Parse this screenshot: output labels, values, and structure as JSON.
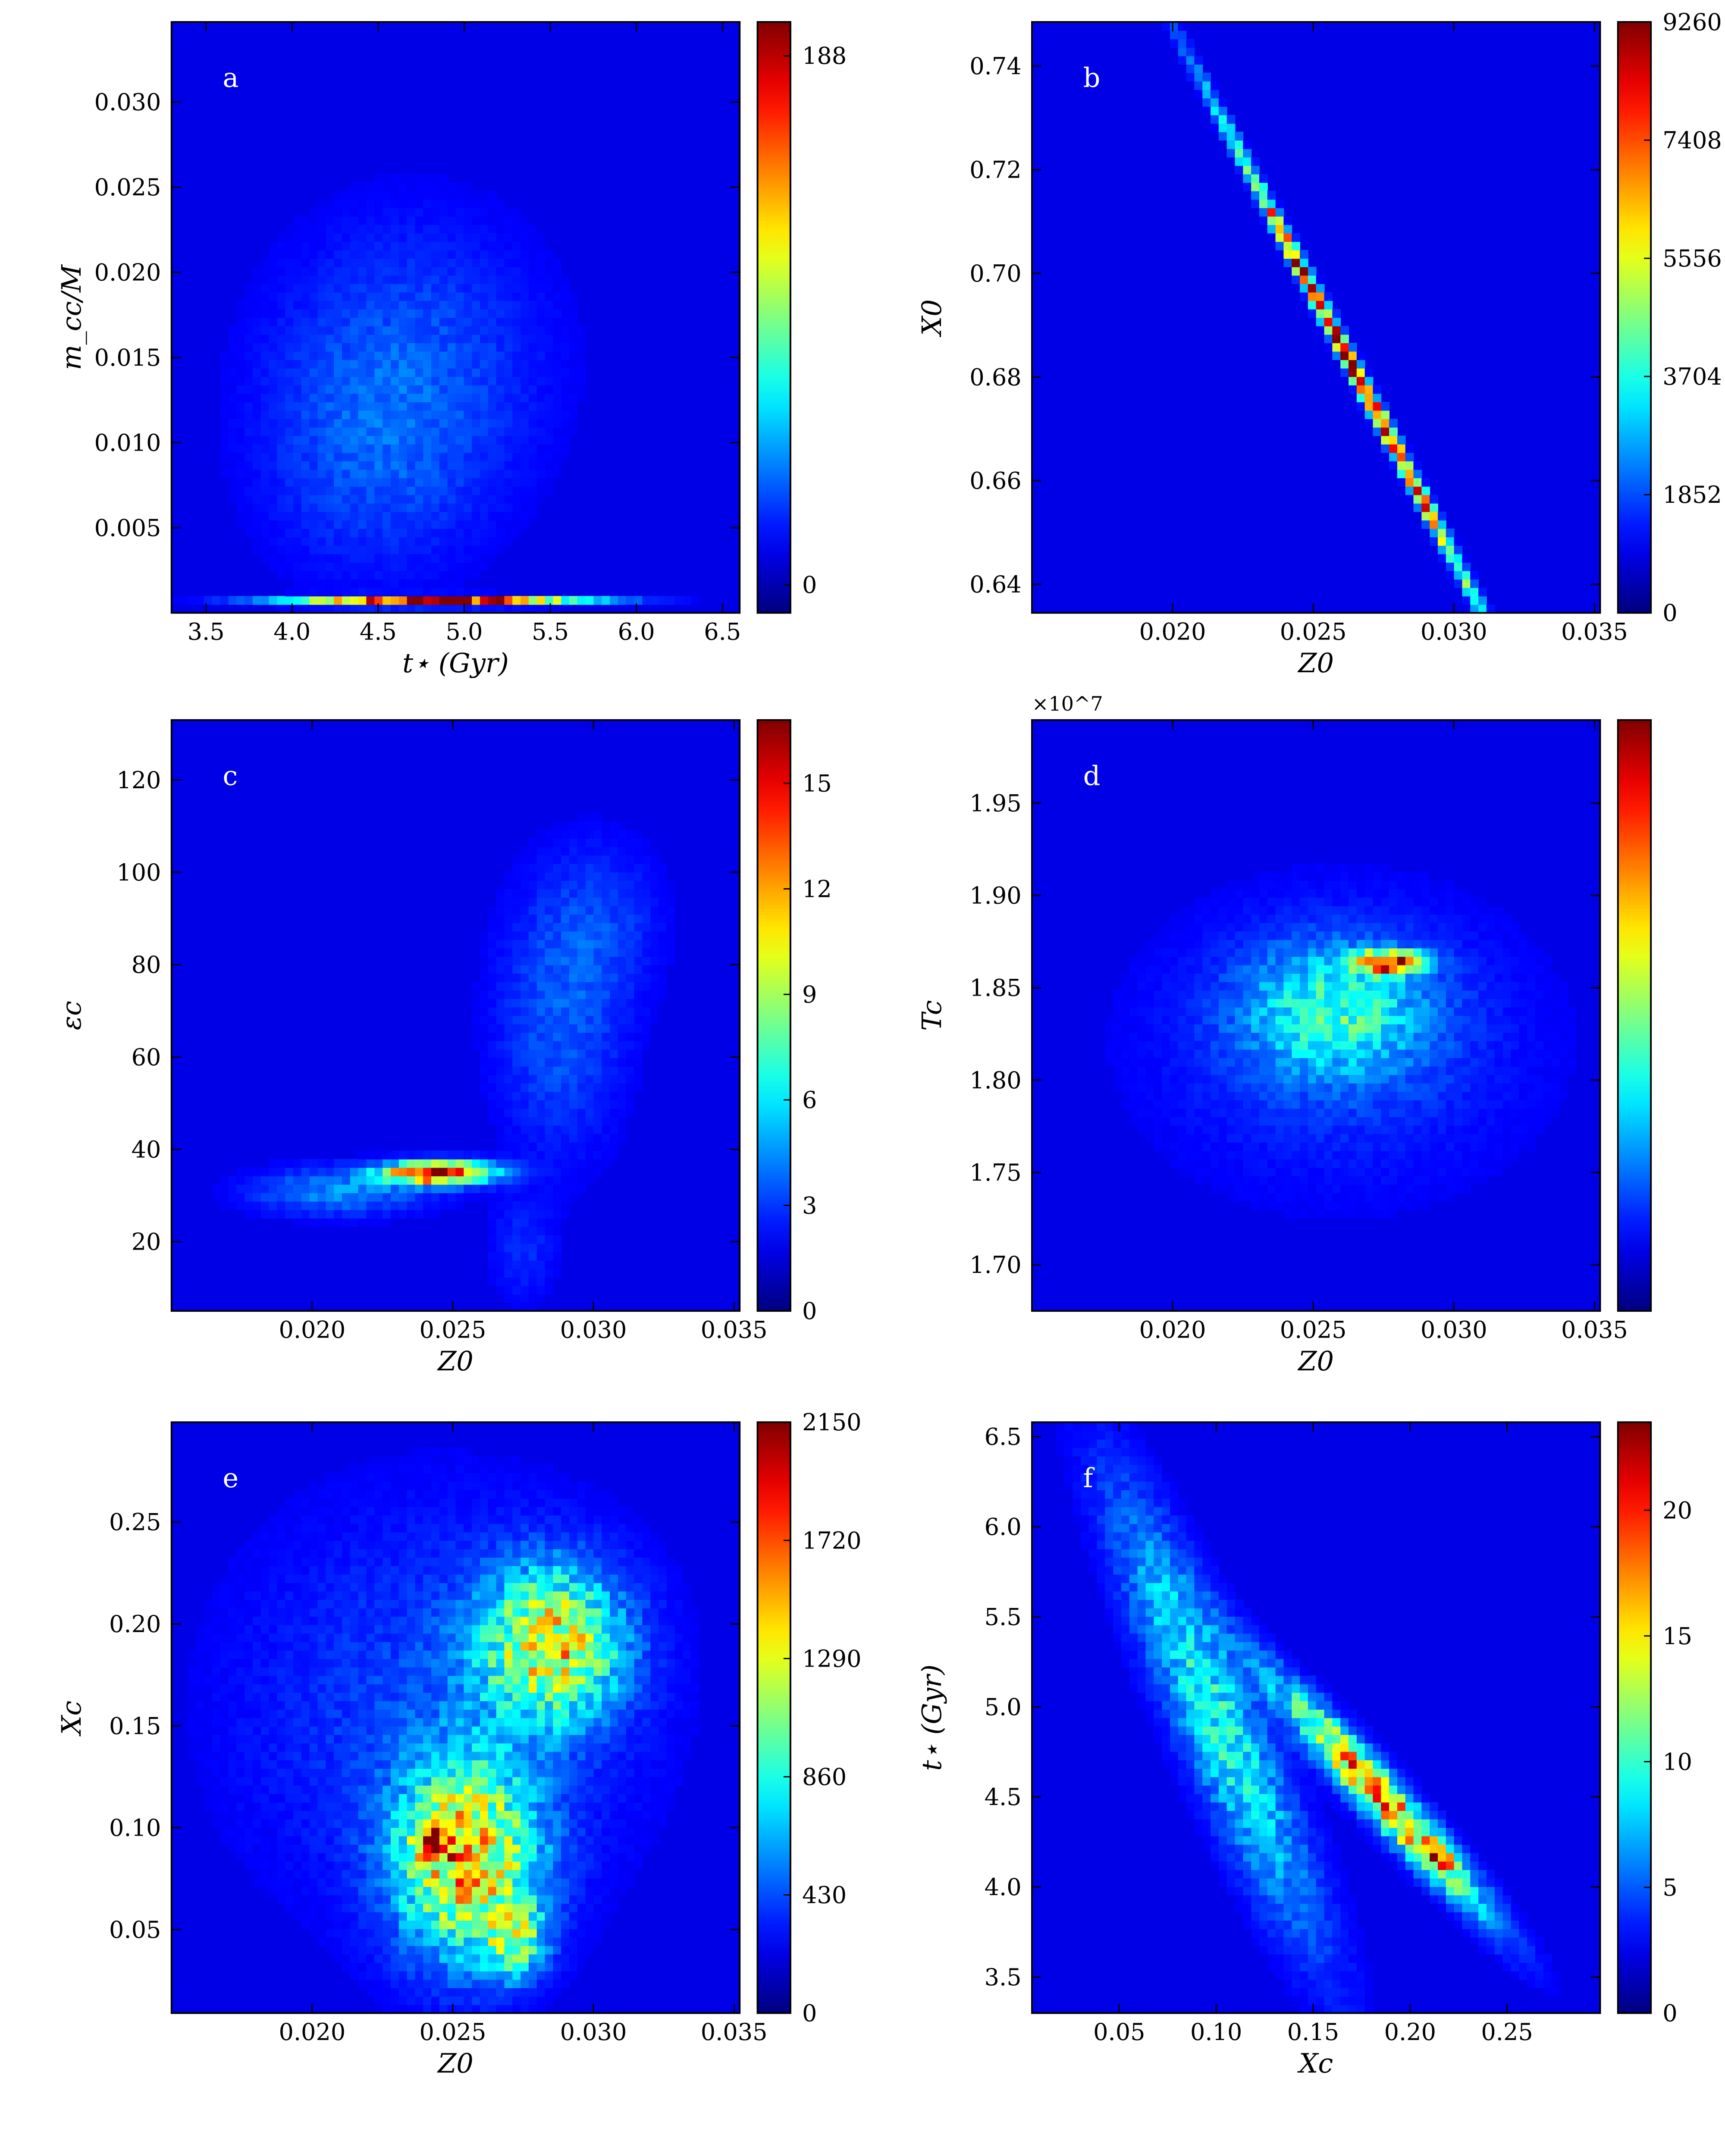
{
  "chart_data": [
    {
      "panel_label": "a",
      "type": "heatmap",
      "xlabel": "t⋆ (Gyr)",
      "ylabel": "m_cc/M",
      "xlim": [
        3.3,
        6.6
      ],
      "ylim": [
        0.0,
        0.0347
      ],
      "x_ticks": [
        3.5,
        4.0,
        4.5,
        5.0,
        5.5,
        6.0,
        6.5
      ],
      "x_tick_labels": [
        "3.5",
        "4.0",
        "4.5",
        "5.0",
        "5.5",
        "6.0",
        "6.5"
      ],
      "y_ticks": [
        0.005,
        0.01,
        0.015,
        0.02,
        0.025,
        0.03
      ],
      "y_tick_labels": [
        "0.005",
        "0.010",
        "0.015",
        "0.020",
        "0.025",
        "0.030"
      ],
      "colorbar": {
        "min": -10,
        "max": 200,
        "ticks": [
          0,
          188
        ],
        "tick_labels": [
          "0",
          "188"
        ]
      },
      "density": {
        "seed": 11,
        "noise": 0.28,
        "floor": 0.02,
        "base": 0.0,
        "blobs": [
          {
            "x": 4.85,
            "y": 0.0007,
            "sx": 0.55,
            "sy": 0.00018,
            "a": 1.0
          },
          {
            "x": 4.7,
            "y": 0.015,
            "sx": 0.55,
            "sy": 0.006,
            "a": 0.1
          },
          {
            "x": 4.45,
            "y": 0.009,
            "sx": 0.45,
            "sy": 0.005,
            "a": 0.08
          }
        ]
      },
      "colormap": "jet"
    },
    {
      "panel_label": "b",
      "type": "heatmap",
      "xlabel": "Z0",
      "ylabel": "X0",
      "xlim": [
        0.015,
        0.0352
      ],
      "ylim": [
        0.6345,
        0.7485
      ],
      "x_ticks": [
        0.02,
        0.025,
        0.03,
        0.035
      ],
      "x_tick_labels": [
        "0.020",
        "0.025",
        "0.030",
        "0.035"
      ],
      "y_ticks": [
        0.64,
        0.66,
        0.68,
        0.7,
        0.72,
        0.74
      ],
      "y_tick_labels": [
        "0.64",
        "0.66",
        "0.68",
        "0.70",
        "0.72",
        "0.74"
      ],
      "colorbar": {
        "min": 0,
        "max": 9260,
        "ticks": [
          0,
          1852,
          3704,
          5556,
          7408,
          9260
        ],
        "tick_labels": [
          "0",
          "1852",
          "3704",
          "5556",
          "7408",
          "9260"
        ]
      },
      "density": {
        "seed": 23,
        "noise": 0.35,
        "floor": 0.02,
        "base": 0.0,
        "rot_blobs": [
          {
            "x": 0.0265,
            "y": 0.681,
            "su": 0.0065,
            "sv": 0.0009,
            "a": 1.0,
            "slope": -3.1
          }
        ]
      },
      "colormap": "jet"
    },
    {
      "panel_label": "c",
      "type": "heatmap",
      "xlabel": "Z0",
      "ylabel": "εc",
      "xlim": [
        0.015,
        0.0352
      ],
      "ylim": [
        5,
        133
      ],
      "x_ticks": [
        0.02,
        0.025,
        0.03,
        0.035
      ],
      "x_tick_labels": [
        "0.020",
        "0.025",
        "0.030",
        "0.035"
      ],
      "y_ticks": [
        20,
        40,
        60,
        80,
        100,
        120
      ],
      "y_tick_labels": [
        "20",
        "40",
        "60",
        "80",
        "100",
        "120"
      ],
      "colorbar": {
        "min": 0,
        "max": 16.8,
        "ticks": [
          0,
          3,
          6,
          9,
          12,
          15
        ],
        "tick_labels": [
          "0",
          "3",
          "6",
          "9",
          "12",
          "15"
        ]
      },
      "density": {
        "seed": 37,
        "noise": 0.3,
        "floor": 0.02,
        "base": 0.0,
        "blobs": [
          {
            "x": 0.0245,
            "y": 35,
            "sx": 0.0013,
            "sy": 1.6,
            "a": 1.0
          },
          {
            "x": 0.021,
            "y": 31,
            "sx": 0.0022,
            "sy": 3.5,
            "a": 0.18
          },
          {
            "x": 0.0288,
            "y": 68,
            "sx": 0.0016,
            "sy": 20,
            "a": 0.12
          },
          {
            "x": 0.0305,
            "y": 90,
            "sx": 0.0015,
            "sy": 12,
            "a": 0.07
          },
          {
            "x": 0.0275,
            "y": 18,
            "sx": 0.0008,
            "sy": 8,
            "a": 0.07
          }
        ]
      },
      "colormap": "jet"
    },
    {
      "panel_label": "d",
      "type": "heatmap",
      "xlabel": "Z0",
      "ylabel": "Tc",
      "axis_multiplier": "×10^7",
      "xlim": [
        0.015,
        0.0352
      ],
      "ylim": [
        1.675,
        1.995
      ],
      "x_ticks": [
        0.02,
        0.025,
        0.03,
        0.035
      ],
      "x_tick_labels": [
        "0.020",
        "0.025",
        "0.030",
        "0.035"
      ],
      "y_ticks": [
        1.7,
        1.75,
        1.8,
        1.85,
        1.9,
        1.95
      ],
      "y_tick_labels": [
        "1.70",
        "1.75",
        "1.80",
        "1.85",
        "1.90",
        "1.95"
      ],
      "colorbar": {
        "min": 0,
        "max": 1,
        "ticks": [],
        "tick_labels": []
      },
      "density": {
        "seed": 41,
        "noise": 0.33,
        "floor": 0.02,
        "base": 0.0,
        "blobs": [
          {
            "x": 0.0277,
            "y": 1.864,
            "sx": 0.0008,
            "sy": 0.004,
            "a": 0.9
          },
          {
            "x": 0.0258,
            "y": 1.838,
            "sx": 0.0022,
            "sy": 0.024,
            "a": 0.3
          },
          {
            "x": 0.026,
            "y": 1.82,
            "sx": 0.0048,
            "sy": 0.055,
            "a": 0.09
          }
        ]
      },
      "colormap": "jet"
    },
    {
      "panel_label": "e",
      "type": "heatmap",
      "xlabel": "Z0",
      "ylabel": "Xc",
      "xlim": [
        0.015,
        0.0352
      ],
      "ylim": [
        0.009,
        0.299
      ],
      "x_ticks": [
        0.02,
        0.025,
        0.03,
        0.035
      ],
      "x_tick_labels": [
        "0.020",
        "0.025",
        "0.030",
        "0.035"
      ],
      "y_ticks": [
        0.05,
        0.1,
        0.15,
        0.2,
        0.25
      ],
      "y_tick_labels": [
        "0.05",
        "0.10",
        "0.15",
        "0.20",
        "0.25"
      ],
      "colorbar": {
        "min": 0,
        "max": 2150,
        "ticks": [
          0,
          430,
          860,
          1290,
          1720,
          2150
        ],
        "tick_labels": [
          "0",
          "430",
          "860",
          "1290",
          "1720",
          "2150"
        ]
      },
      "density": {
        "seed": 53,
        "noise": 0.4,
        "floor": 0.02,
        "base": 0.0,
        "blobs": [
          {
            "x": 0.0255,
            "y": 0.085,
            "sx": 0.0017,
            "sy": 0.032,
            "a": 0.62
          },
          {
            "x": 0.0285,
            "y": 0.19,
            "sx": 0.0017,
            "sy": 0.025,
            "a": 0.56
          },
          {
            "x": 0.0272,
            "y": 0.045,
            "sx": 0.0007,
            "sy": 0.012,
            "a": 0.4
          },
          {
            "x": 0.0243,
            "y": 0.092,
            "sx": 0.0005,
            "sy": 0.006,
            "a": 0.4
          },
          {
            "x": 0.0245,
            "y": 0.16,
            "sx": 0.005,
            "sy": 0.07,
            "a": 0.1
          }
        ]
      },
      "colormap": "jet"
    },
    {
      "panel_label": "f",
      "type": "heatmap",
      "xlabel": "Xc",
      "ylabel": "t⋆ (Gyr)",
      "xlim": [
        0.005,
        0.298
      ],
      "ylim": [
        3.3,
        6.58
      ],
      "x_ticks": [
        0.05,
        0.1,
        0.15,
        0.2,
        0.25
      ],
      "x_tick_labels": [
        "0.05",
        "0.10",
        "0.15",
        "0.20",
        "0.25"
      ],
      "y_ticks": [
        3.5,
        4.0,
        4.5,
        5.0,
        5.5,
        6.0,
        6.5
      ],
      "y_tick_labels": [
        "3.5",
        "4.0",
        "4.5",
        "5.0",
        "5.5",
        "6.0",
        "6.5"
      ],
      "colorbar": {
        "min": 0,
        "max": 23.5,
        "ticks": [
          0,
          5,
          10,
          15,
          20
        ],
        "tick_labels": [
          "0",
          "5",
          "10",
          "15",
          "20"
        ]
      },
      "density": {
        "seed": 67,
        "noise": 0.38,
        "floor": 0.02,
        "base": 0.0,
        "rot_blobs": [
          {
            "x": 0.185,
            "y": 4.5,
            "su": 0.05,
            "sv": 0.08,
            "a": 0.75,
            "slope": -10.5
          },
          {
            "x": 0.1,
            "y": 4.95,
            "su": 0.08,
            "sv": 0.16,
            "a": 0.33,
            "slope": -5.0
          },
          {
            "x": 0.215,
            "y": 4.17,
            "su": 0.006,
            "sv": 0.04,
            "a": 0.45,
            "slope": -10.5
          }
        ]
      },
      "colormap": "jet"
    }
  ]
}
